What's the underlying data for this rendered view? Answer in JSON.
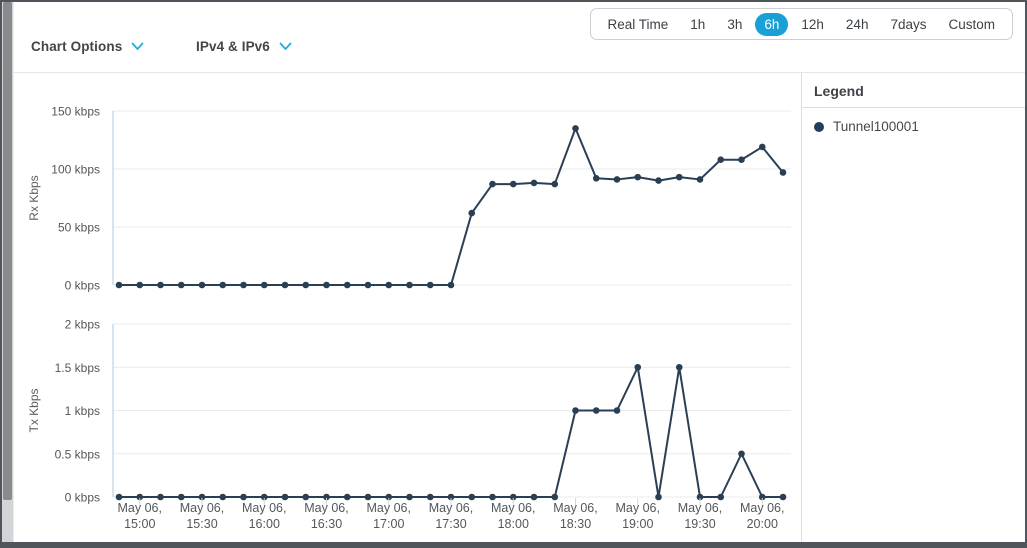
{
  "header": {
    "chart_options": {
      "label": "Chart Options"
    },
    "ip_filter": {
      "label": "IPv4 & IPv6"
    },
    "time_range": {
      "options": [
        "Real Time",
        "1h",
        "3h",
        "6h",
        "12h",
        "24h",
        "7days",
        "Custom"
      ],
      "selected": "6h"
    }
  },
  "legend": {
    "title": "Legend",
    "items": [
      {
        "label": "Tunnel100001",
        "color": "#22405c"
      }
    ]
  },
  "colors": {
    "accent_blue": "#18a0d7",
    "chevron_blue": "#2aa7dd",
    "series": "#2a3f54",
    "gridline": "#e9ebec",
    "axis_line": "#c8dcec"
  },
  "chart_data": [
    {
      "type": "line",
      "title": "Rx traffic",
      "ylabel": "Rx Kbps",
      "ylim": [
        0,
        150
      ],
      "grid": "horizontal",
      "yticks": [
        {
          "value": 0,
          "label": "0 kbps"
        },
        {
          "value": 50,
          "label": "50 kbps"
        },
        {
          "value": 100,
          "label": "100 kbps"
        },
        {
          "value": 150,
          "label": "150 kbps"
        }
      ],
      "x_times": [
        "14:50",
        "15:00",
        "15:10",
        "15:20",
        "15:30",
        "15:40",
        "15:50",
        "16:00",
        "16:10",
        "16:20",
        "16:30",
        "16:40",
        "16:50",
        "17:00",
        "17:10",
        "17:20",
        "17:30",
        "17:40",
        "17:50",
        "18:00",
        "18:10",
        "18:20",
        "18:30",
        "18:40",
        "18:50",
        "19:00",
        "19:10",
        "19:20",
        "19:30",
        "19:40",
        "19:50",
        "20:00",
        "20:10"
      ],
      "series": [
        {
          "name": "Tunnel100001",
          "color": "#2a3f54",
          "values": [
            0,
            0,
            0,
            0,
            0,
            0,
            0,
            0,
            0,
            0,
            0,
            0,
            0,
            0,
            0,
            0,
            0,
            62,
            87,
            87,
            88,
            87,
            135,
            92,
            91,
            93,
            90,
            93,
            91,
            108,
            108,
            119,
            97
          ]
        }
      ]
    },
    {
      "type": "line",
      "title": "Tx traffic",
      "ylabel": "Tx Kbps",
      "ylim": [
        0,
        2
      ],
      "grid": "horizontal",
      "yticks": [
        {
          "value": 0,
          "label": "0 kbps"
        },
        {
          "value": 0.5,
          "label": "0.5 kbps"
        },
        {
          "value": 1,
          "label": "1 kbps"
        },
        {
          "value": 1.5,
          "label": "1.5 kbps"
        },
        {
          "value": 2,
          "label": "2 kbps"
        }
      ],
      "x_times": [
        "14:50",
        "15:00",
        "15:10",
        "15:20",
        "15:30",
        "15:40",
        "15:50",
        "16:00",
        "16:10",
        "16:20",
        "16:30",
        "16:40",
        "16:50",
        "17:00",
        "17:10",
        "17:20",
        "17:30",
        "17:40",
        "17:50",
        "18:00",
        "18:10",
        "18:20",
        "18:30",
        "18:40",
        "18:50",
        "19:00",
        "19:10",
        "19:20",
        "19:30",
        "19:40",
        "19:50",
        "20:00",
        "20:10"
      ],
      "series": [
        {
          "name": "Tunnel100001",
          "color": "#2a3f54",
          "values": [
            0,
            0,
            0,
            0,
            0,
            0,
            0,
            0,
            0,
            0,
            0,
            0,
            0,
            0,
            0,
            0,
            0,
            0,
            0,
            0,
            0,
            0,
            1,
            1,
            1,
            1.5,
            0,
            1.5,
            0,
            0,
            0.5,
            0,
            0
          ]
        }
      ],
      "xtick_labels": [
        {
          "date": "May 06,",
          "time": "15:00"
        },
        {
          "date": "May 06,",
          "time": "15:30"
        },
        {
          "date": "May 06,",
          "time": "16:00"
        },
        {
          "date": "May 06,",
          "time": "16:30"
        },
        {
          "date": "May 06,",
          "time": "17:00"
        },
        {
          "date": "May 06,",
          "time": "17:30"
        },
        {
          "date": "May 06,",
          "time": "18:00"
        },
        {
          "date": "May 06,",
          "time": "18:30"
        },
        {
          "date": "May 06,",
          "time": "19:00"
        },
        {
          "date": "May 06,",
          "time": "19:30"
        },
        {
          "date": "May 06,",
          "time": "20:00"
        }
      ]
    }
  ]
}
